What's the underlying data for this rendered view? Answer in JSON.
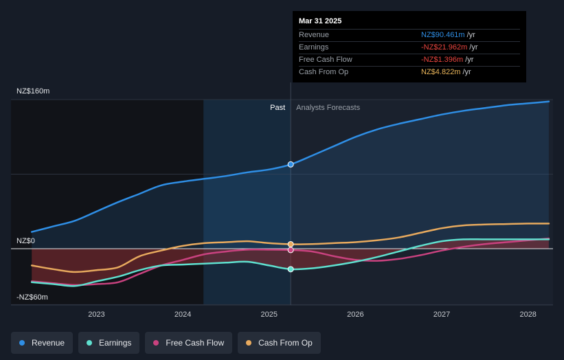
{
  "tooltip": {
    "date": "Mar 31 2025",
    "rows": [
      {
        "label": "Revenue",
        "value": "NZ$90.461m",
        "unit": "/yr",
        "color": "#2f8fe6"
      },
      {
        "label": "Earnings",
        "value": "-NZ$21.962m",
        "unit": "/yr",
        "color": "#e9453f"
      },
      {
        "label": "Free Cash Flow",
        "value": "-NZ$1.396m",
        "unit": "/yr",
        "color": "#e9453f"
      },
      {
        "label": "Cash From Op",
        "value": "NZ$4.822m",
        "unit": "/yr",
        "color": "#e8b45a"
      }
    ]
  },
  "legend": [
    {
      "label": "Revenue",
      "color": "#2f8fe6"
    },
    {
      "label": "Earnings",
      "color": "#5fe0cf"
    },
    {
      "label": "Free Cash Flow",
      "color": "#c9427f"
    },
    {
      "label": "Cash From Op",
      "color": "#e8aa5e"
    }
  ],
  "chart_data": {
    "type": "line",
    "title": "",
    "xlabel": "",
    "ylabel": "",
    "ylim": [
      -60,
      160
    ],
    "xlim": [
      2022.1,
      2028.24
    ],
    "y_tick_labels": [
      "NZ$160m",
      "NZ$0",
      "-NZ$60m"
    ],
    "x_ticks": [
      {
        "label": "2023",
        "value": 2023
      },
      {
        "label": "2024",
        "value": 2024
      },
      {
        "label": "2025",
        "value": 2025
      },
      {
        "label": "2026",
        "value": 2026
      },
      {
        "label": "2027",
        "value": 2027
      },
      {
        "label": "2028",
        "value": 2028
      }
    ],
    "past_label": "Past",
    "forecast_label": "Analysts Forecasts",
    "divider_x": 2025.25,
    "highlight_start": 2024.24,
    "series": [
      {
        "name": "Revenue",
        "color": "#2f8fe6",
        "x": [
          2022.25,
          2022.5,
          2022.75,
          2023.0,
          2023.25,
          2023.5,
          2023.75,
          2024.0,
          2024.25,
          2024.5,
          2024.75,
          2025.0,
          2025.25,
          2025.5,
          2025.75,
          2026.0,
          2026.25,
          2026.5,
          2026.75,
          2027.0,
          2027.25,
          2027.5,
          2027.75,
          2028.0,
          2028.24
        ],
        "values": [
          18,
          24,
          30,
          40,
          50,
          59,
          68,
          72,
          75,
          78,
          82,
          85,
          90.5,
          100,
          110,
          120,
          128,
          134,
          139,
          144,
          148,
          151,
          154,
          156,
          158
        ]
      },
      {
        "name": "Earnings",
        "color": "#5fe0cf",
        "x": [
          2022.25,
          2022.5,
          2022.75,
          2023.0,
          2023.25,
          2023.5,
          2023.75,
          2024.0,
          2024.25,
          2024.5,
          2024.75,
          2025.0,
          2025.25,
          2025.5,
          2025.75,
          2026.0,
          2026.25,
          2026.5,
          2026.75,
          2027.0,
          2027.25,
          2027.5,
          2027.75,
          2028.0,
          2028.24
        ],
        "values": [
          -36,
          -38,
          -40,
          -35,
          -30,
          -23,
          -18,
          -17,
          -16,
          -15,
          -14,
          -18,
          -22,
          -21,
          -18,
          -14,
          -9,
          -3,
          3,
          8,
          10,
          10,
          10,
          10,
          10
        ]
      },
      {
        "name": "Free Cash Flow",
        "color": "#c9427f",
        "x": [
          2022.25,
          2022.5,
          2022.75,
          2023.0,
          2023.25,
          2023.5,
          2023.75,
          2024.0,
          2024.25,
          2024.5,
          2024.75,
          2025.0,
          2025.25,
          2025.5,
          2025.75,
          2026.0,
          2026.25,
          2026.5,
          2026.75,
          2027.0,
          2027.25,
          2027.5,
          2027.75,
          2028.0,
          2028.24
        ],
        "values": [
          -35,
          -37,
          -39,
          -38,
          -36,
          -27,
          -18,
          -12,
          -6,
          -3,
          -1,
          -1,
          -1.4,
          -3,
          -8,
          -12,
          -13,
          -11,
          -7,
          -2,
          2,
          5,
          7,
          9,
          11
        ]
      },
      {
        "name": "Cash From Op",
        "color": "#e8aa5e",
        "x": [
          2022.25,
          2022.5,
          2022.75,
          2023.0,
          2023.25,
          2023.5,
          2023.75,
          2024.0,
          2024.25,
          2024.5,
          2024.75,
          2025.0,
          2025.25,
          2025.5,
          2025.75,
          2026.0,
          2026.25,
          2026.5,
          2026.75,
          2027.0,
          2027.25,
          2027.5,
          2027.75,
          2028.0,
          2028.24
        ],
        "values": [
          -18,
          -22,
          -25,
          -23,
          -20,
          -8,
          -2,
          3,
          6,
          7,
          8,
          6,
          4.8,
          5,
          6,
          7,
          9,
          12,
          17,
          22,
          25,
          26,
          26.5,
          27,
          27
        ]
      }
    ],
    "markers": [
      {
        "series": "Revenue",
        "x": 2025.25,
        "value": 90.5
      },
      {
        "series": "Earnings",
        "x": 2025.25,
        "value": -22
      },
      {
        "series": "Free Cash Flow",
        "x": 2025.25,
        "value": -1.4
      },
      {
        "series": "Cash From Op",
        "x": 2025.25,
        "value": 4.8
      }
    ]
  }
}
